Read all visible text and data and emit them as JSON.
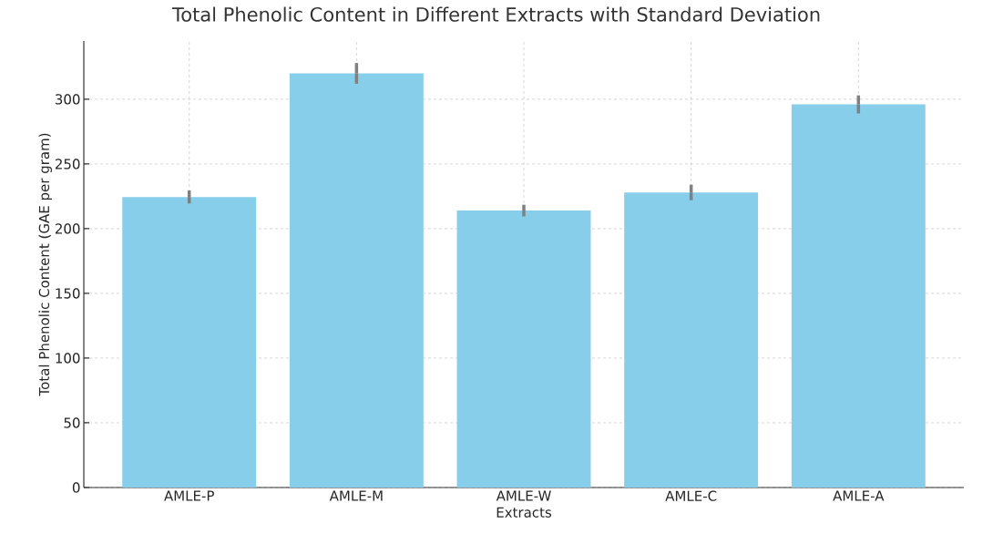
{
  "chart_data": {
    "type": "bar",
    "title": "Total Phenolic Content in Different Extracts with Standard Deviation",
    "xlabel": "Extracts",
    "ylabel": "Total Phenolic Content (GAE per gram)",
    "categories": [
      "AMLE-P",
      "AMLE-M",
      "AMLE-W",
      "AMLE-C",
      "AMLE-A"
    ],
    "values": [
      224.5,
      320,
      214,
      228,
      296
    ],
    "errors": [
      5,
      8,
      4.5,
      6,
      7
    ],
    "color": "#87ceeb",
    "ylim": [
      0,
      345
    ],
    "yticks": [
      0,
      50,
      100,
      150,
      200,
      250,
      300
    ],
    "grid": true
  }
}
